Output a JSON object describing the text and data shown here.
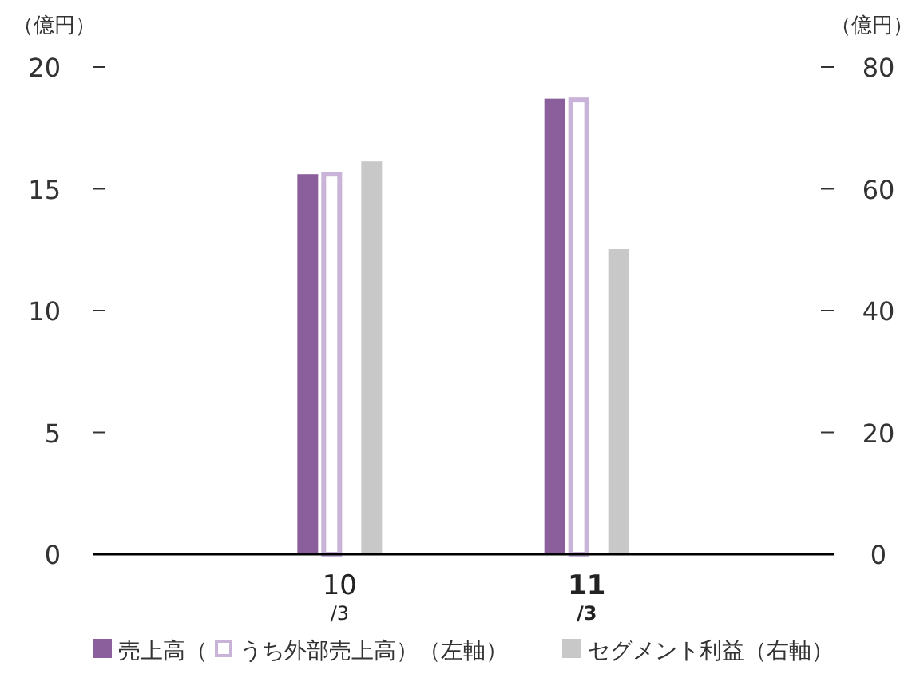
{
  "chart_data": {
    "type": "bar",
    "ylabel": "（億円）",
    "y2label": "（億円）",
    "categories": [
      "10$_{/3}$",
      "11$_{/3}$"
    ],
    "ylim": [
      0,
      20
    ],
    "yticks": [
      0,
      5,
      10,
      15,
      20
    ],
    "y2lim": [
      0,
      80
    ],
    "y2ticks": [
      0,
      20,
      40,
      60,
      80
    ],
    "legend": "bottom",
    "grid": false,
    "series": [
      {
        "name": "売上高（",
        "color": "#8b5f9c",
        "values": [
          15.6,
          18.7
        ]
      },
      {
        "name": "うち外部売上高）（左軸）",
        "color": "#c9b3d9",
        "values": [
          15.6,
          18.65
        ]
      },
      {
        "name": "セグメント利益（右軸）",
        "color": "#c8c8c8",
        "axis": "y2",
        "values": [
          64.5,
          50.1
        ]
      }
    ]
  }
}
